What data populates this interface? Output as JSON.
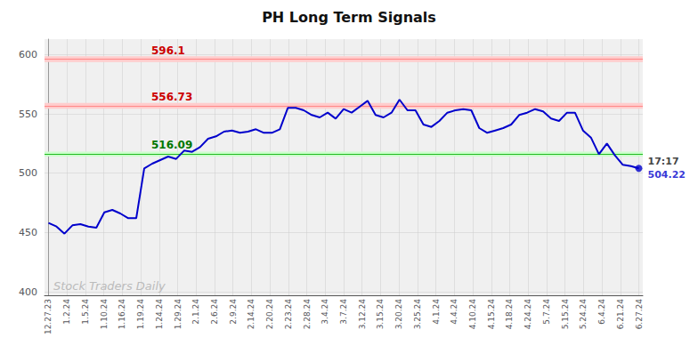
{
  "chart_data": {
    "type": "line",
    "title": "PH Long Term Signals",
    "color": "#0000cc",
    "x": [
      0,
      1,
      2,
      3,
      4,
      5,
      6,
      7,
      8,
      9,
      10,
      11,
      12,
      13,
      14,
      15,
      16,
      17,
      18,
      19,
      20,
      21,
      22,
      23,
      24,
      25,
      26,
      27,
      28,
      29,
      30,
      31,
      32,
      33,
      34,
      35,
      36,
      37,
      38,
      39,
      40,
      41,
      42,
      43,
      44,
      45,
      46,
      47,
      48,
      49,
      50,
      51,
      52,
      53,
      54,
      55,
      56,
      57,
      58,
      59,
      60,
      61,
      62,
      63,
      64,
      65,
      66,
      67,
      68,
      69,
      70,
      71,
      72,
      73,
      74
    ],
    "values": [
      458,
      455,
      449,
      456,
      457,
      455,
      454,
      467,
      469,
      466,
      462,
      462,
      504,
      508,
      511,
      514,
      512,
      519,
      518,
      522,
      529,
      531,
      535,
      536,
      534,
      535,
      537,
      534,
      534,
      537,
      555,
      555,
      553,
      549,
      547,
      551,
      546,
      554,
      551,
      556,
      561,
      549,
      547,
      551,
      562,
      553,
      553,
      541,
      539,
      544,
      551,
      553,
      554,
      553,
      538,
      534,
      536,
      538,
      541,
      549,
      551,
      554,
      552,
      546,
      544,
      551,
      551,
      536,
      530,
      516,
      525,
      515,
      507,
      506,
      504
    ],
    "xlim": [
      -0.5,
      74.5
    ],
    "xticks": [
      {
        "value": 0,
        "label": "12.27.23"
      },
      {
        "value": 2.3125,
        "label": "1.2.24"
      },
      {
        "value": 4.625,
        "label": "1.5.24"
      },
      {
        "value": 6.9375,
        "label": "1.10.24"
      },
      {
        "value": 9.25,
        "label": "1.16.24"
      },
      {
        "value": 11.5625,
        "label": "1.19.24"
      },
      {
        "value": 13.875,
        "label": "1.24.24"
      },
      {
        "value": 16.1875,
        "label": "1.29.24"
      },
      {
        "value": 18.5,
        "label": "2.1.24"
      },
      {
        "value": 20.8125,
        "label": "2.6.24"
      },
      {
        "value": 23.125,
        "label": "2.9.24"
      },
      {
        "value": 25.4375,
        "label": "2.14.24"
      },
      {
        "value": 27.75,
        "label": "2.20.24"
      },
      {
        "value": 30.0625,
        "label": "2.23.24"
      },
      {
        "value": 32.375,
        "label": "2.28.24"
      },
      {
        "value": 34.6875,
        "label": "3.4.24"
      },
      {
        "value": 37,
        "label": "3.7.24"
      },
      {
        "value": 39.3125,
        "label": "3.12.24"
      },
      {
        "value": 41.625,
        "label": "3.15.24"
      },
      {
        "value": 43.9375,
        "label": "3.20.24"
      },
      {
        "value": 46.25,
        "label": "3.25.24"
      },
      {
        "value": 48.5625,
        "label": "4.1.24"
      },
      {
        "value": 50.875,
        "label": "4.4.24"
      },
      {
        "value": 53.1875,
        "label": "4.10.24"
      },
      {
        "value": 55.5,
        "label": "4.15.24"
      },
      {
        "value": 57.8125,
        "label": "4.18.24"
      },
      {
        "value": 60.125,
        "label": "4.24.24"
      },
      {
        "value": 62.4375,
        "label": "5.7.24"
      },
      {
        "value": 64.75,
        "label": "5.15.24"
      },
      {
        "value": 67.0625,
        "label": "5.24.24"
      },
      {
        "value": 69.375,
        "label": "6.4.24"
      },
      {
        "value": 71.6875,
        "label": "6.21.24"
      },
      {
        "value": 74,
        "label": "6.27.24"
      }
    ],
    "ylim": [
      397,
      613
    ],
    "yticks": [
      400,
      450,
      500,
      550,
      600
    ],
    "grid": true,
    "hlines": [
      {
        "value": 556.73,
        "color": "#ff8888",
        "band": [
          554.23,
          559.23
        ],
        "band_color": "#ffcccc",
        "label": "556.73",
        "label_color": "#cc0000"
      },
      {
        "value": 596.1,
        "color": "#ff8888",
        "band": [
          593.6,
          598.6
        ],
        "band_color": "#ffcccc",
        "label": "596.1",
        "label_color": "#cc0000"
      },
      {
        "value": 516.09,
        "color": "#22bb22",
        "band": [
          514.09,
          518.09
        ],
        "band_color": "#ccffcc",
        "label": "516.09",
        "label_color": "#007700"
      }
    ],
    "end_annotations": [
      {
        "text": "17:17",
        "color": "#111111"
      },
      {
        "text": "504.22",
        "color": "#0000cc"
      }
    ],
    "watermark": {
      "text": "Stock Traders Daily",
      "color": "#bbbbbb"
    }
  }
}
